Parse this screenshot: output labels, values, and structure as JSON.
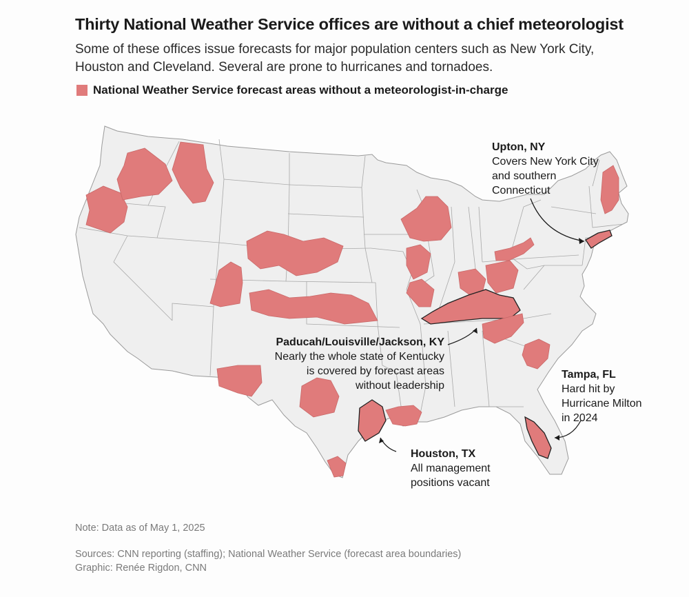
{
  "title": "Thirty National Weather Service offices are without a chief meteorologist",
  "subtitle": "Some of these offices issue forecasts for major population centers such as New York City, Houston and Cleveland. Several are prone to hurricanes and tornadoes.",
  "legend": {
    "label": "National Weather Service forecast areas without a meteorologist-in-charge",
    "color": "#e07b7b"
  },
  "colors": {
    "land": "#efefef",
    "border": "#9a9a9a",
    "highlight": "#e07b7b",
    "highlight_stroke": "#c96868"
  },
  "annotations": {
    "upton": {
      "head": "Upton, NY",
      "lines": [
        "Covers New York City",
        "and southern",
        "Connecticut"
      ]
    },
    "kentucky": {
      "head": "Paducah/Louisville/Jackson, KY",
      "lines": [
        "Nearly the whole state of Kentucky",
        "is covered by forecast areas",
        "without leadership"
      ]
    },
    "tampa": {
      "head": "Tampa, FL",
      "lines": [
        "Hard hit by",
        "Hurricane Milton",
        "in 2024"
      ]
    },
    "houston": {
      "head": "Houston, TX",
      "lines": [
        "All management",
        "positions vacant"
      ]
    }
  },
  "note": "Note: Data as of May 1, 2025",
  "sources": "Sources: CNN reporting (staffing); National Weather Service (forecast area boundaries)",
  "credit": "Graphic: Renée Rigdon, CNN"
}
